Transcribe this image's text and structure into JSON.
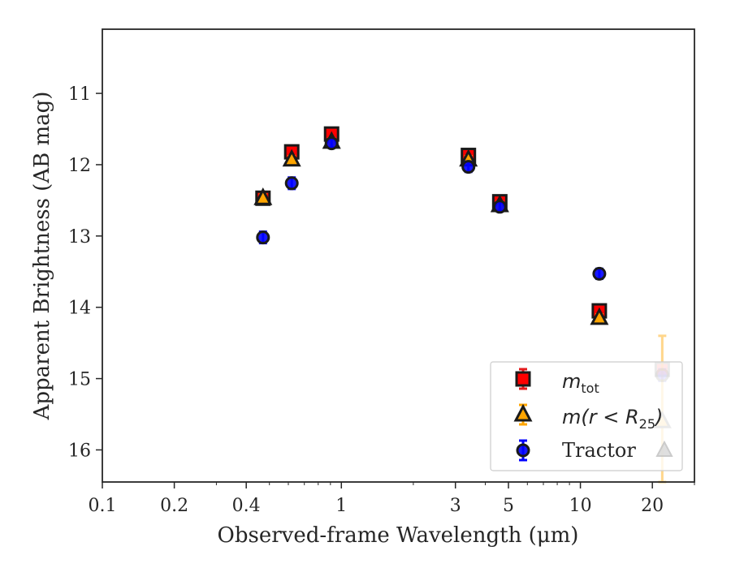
{
  "chart_data": {
    "type": "scatter",
    "xlabel": "Observed-frame Wavelength (μm)",
    "ylabel": "Apparent Brightness (AB mag)",
    "xscale": "log",
    "xlim": [
      0.1,
      30
    ],
    "ylim": [
      16.45,
      10.1
    ],
    "y_inverted": true,
    "x_ticks": [
      0.1,
      0.2,
      0.4,
      1,
      3,
      5,
      10,
      20
    ],
    "x_tick_labels": [
      "0.1",
      "0.2",
      "0.4",
      "1",
      "3",
      "5",
      "10",
      "20"
    ],
    "y_ticks": [
      11,
      12,
      13,
      14,
      15,
      16
    ],
    "y_tick_labels": [
      "11",
      "12",
      "13",
      "14",
      "15",
      "16"
    ],
    "grid": false,
    "legend_position": "lower right",
    "series": [
      {
        "key": "mtot",
        "legend_main": "m",
        "legend_sub": "tot",
        "marker": "square",
        "color": "#ff0000",
        "errcolor": "#e31a1c",
        "points": [
          {
            "x": 0.47,
            "y": 12.47,
            "err": 0.05
          },
          {
            "x": 0.62,
            "y": 11.82,
            "err": 0.05
          },
          {
            "x": 0.91,
            "y": 11.57,
            "err": 0.05
          },
          {
            "x": 3.4,
            "y": 11.87,
            "err": 0.05
          },
          {
            "x": 4.6,
            "y": 12.52,
            "err": 0.05
          },
          {
            "x": 12.0,
            "y": 14.05,
            "err": 0.05
          },
          {
            "x": 22.0,
            "y": 14.87,
            "err": 0.06
          }
        ]
      },
      {
        "key": "mr25",
        "legend_main": "m(r < R",
        "legend_sub": "25",
        "legend_close": ")",
        "marker": "triangle",
        "color": "#ffa500",
        "errcolor": "#ffa500",
        "points": [
          {
            "x": 0.47,
            "y": 12.47,
            "err": 0.05
          },
          {
            "x": 0.62,
            "y": 11.93,
            "err": 0.05
          },
          {
            "x": 0.91,
            "y": 11.68,
            "err": 0.05
          },
          {
            "x": 3.4,
            "y": 11.93,
            "err": 0.05
          },
          {
            "x": 4.6,
            "y": 12.57,
            "err": 0.05
          },
          {
            "x": 12.0,
            "y": 14.15,
            "err": 0.05
          },
          {
            "x": 22.0,
            "y": 15.6,
            "err": 1.2
          }
        ]
      },
      {
        "key": "tractor",
        "legend_main": "Tractor",
        "marker": "circle",
        "color": "#0000ff",
        "errcolor": "#0000ff",
        "points": [
          {
            "x": 0.47,
            "y": 13.02,
            "err": 0.08
          },
          {
            "x": 0.62,
            "y": 12.26,
            "err": 0.08
          },
          {
            "x": 0.91,
            "y": 11.7,
            "err": 0.06
          },
          {
            "x": 3.4,
            "y": 12.03,
            "err": 0.07
          },
          {
            "x": 4.6,
            "y": 12.59,
            "err": 0.06
          },
          {
            "x": 12.0,
            "y": 13.53,
            "err": 0.07
          },
          {
            "x": 22.0,
            "y": 14.95,
            "err": 0.08
          }
        ]
      }
    ]
  }
}
